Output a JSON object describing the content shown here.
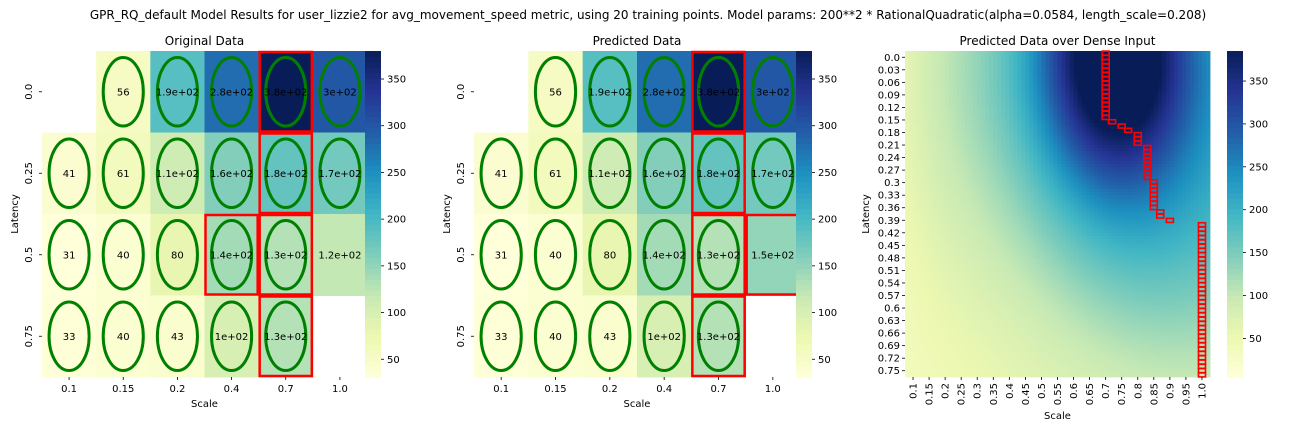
{
  "suptitle": "GPR_RQ_default Model Results for user_lizzie2 for avg_movement_speed metric, using 20 training points. Model params: 200**2 * RationalQuadratic(alpha=0.0584, length_scale=0.208)",
  "colormap": {
    "name": "YlGnBu",
    "stops": [
      "#ffffd9",
      "#edf8b1",
      "#c7e9b4",
      "#7fcdbb",
      "#41b6c4",
      "#1d91c0",
      "#225ea8",
      "#253494",
      "#081d58"
    ]
  },
  "ellipse_color": "#008000",
  "highlight_color": "#ff0000",
  "chart_data": [
    {
      "type": "heatmap",
      "title": "Original Data",
      "xlabel": "Scale",
      "ylabel": "Latency",
      "x_categories": [
        "0.1",
        "0.15",
        "0.2",
        "0.4",
        "0.7",
        "1.0"
      ],
      "y_categories": [
        "0.0",
        "0.25",
        "0.5",
        "0.75"
      ],
      "values": [
        [
          null,
          56,
          190,
          280,
          380,
          300
        ],
        [
          41,
          61,
          110,
          160,
          180,
          170
        ],
        [
          31,
          40,
          80,
          140,
          130,
          120
        ],
        [
          33,
          40,
          43,
          100,
          130,
          null
        ]
      ],
      "labels": [
        [
          "",
          "56",
          "1.9e+02",
          "2.8e+02",
          "3.8e+02",
          "3e+02"
        ],
        [
          "41",
          "61",
          "1.1e+02",
          "1.6e+02",
          "1.8e+02",
          "1.7e+02"
        ],
        [
          "31",
          "40",
          "80",
          "1.4e+02",
          "1.3e+02",
          "1.2e+02"
        ],
        [
          "33",
          "40",
          "43",
          "1e+02",
          "1.3e+02",
          ""
        ]
      ],
      "training_cells": [
        [
          0,
          1
        ],
        [
          0,
          2
        ],
        [
          0,
          3
        ],
        [
          0,
          4
        ],
        [
          0,
          5
        ],
        [
          1,
          0
        ],
        [
          1,
          1
        ],
        [
          1,
          2
        ],
        [
          1,
          3
        ],
        [
          1,
          4
        ],
        [
          1,
          5
        ],
        [
          2,
          0
        ],
        [
          2,
          1
        ],
        [
          2,
          2
        ],
        [
          2,
          3
        ],
        [
          2,
          4
        ],
        [
          3,
          0
        ],
        [
          3,
          1
        ],
        [
          3,
          2
        ],
        [
          3,
          3
        ],
        [
          3,
          4
        ]
      ],
      "highlight_cells": [
        [
          0,
          4
        ],
        [
          1,
          4
        ],
        [
          2,
          3
        ],
        [
          2,
          4
        ],
        [
          3,
          4
        ]
      ],
      "colorbar": {
        "vmin": 31,
        "vmax": 380,
        "ticks": [
          50,
          100,
          150,
          200,
          250,
          300,
          350
        ]
      }
    },
    {
      "type": "heatmap",
      "title": "Predicted Data",
      "xlabel": "Scale",
      "ylabel": "Latency",
      "x_categories": [
        "0.1",
        "0.15",
        "0.2",
        "0.4",
        "0.7",
        "1.0"
      ],
      "y_categories": [
        "0.0",
        "0.25",
        "0.5",
        "0.75"
      ],
      "values": [
        [
          null,
          56,
          190,
          280,
          380,
          300
        ],
        [
          41,
          61,
          110,
          160,
          180,
          170
        ],
        [
          31,
          40,
          80,
          140,
          130,
          150
        ],
        [
          33,
          40,
          43,
          100,
          130,
          null
        ]
      ],
      "labels": [
        [
          "",
          "56",
          "1.9e+02",
          "2.8e+02",
          "3.8e+02",
          "3e+02"
        ],
        [
          "41",
          "61",
          "1.1e+02",
          "1.6e+02",
          "1.8e+02",
          "1.7e+02"
        ],
        [
          "31",
          "40",
          "80",
          "1.4e+02",
          "1.3e+02",
          "1.5e+02"
        ],
        [
          "33",
          "40",
          "43",
          "1e+02",
          "1.3e+02",
          ""
        ]
      ],
      "training_cells": [
        [
          0,
          1
        ],
        [
          0,
          2
        ],
        [
          0,
          3
        ],
        [
          0,
          4
        ],
        [
          0,
          5
        ],
        [
          1,
          0
        ],
        [
          1,
          1
        ],
        [
          1,
          2
        ],
        [
          1,
          3
        ],
        [
          1,
          4
        ],
        [
          1,
          5
        ],
        [
          2,
          0
        ],
        [
          2,
          1
        ],
        [
          2,
          2
        ],
        [
          2,
          3
        ],
        [
          2,
          4
        ],
        [
          3,
          0
        ],
        [
          3,
          1
        ],
        [
          3,
          2
        ],
        [
          3,
          3
        ],
        [
          3,
          4
        ]
      ],
      "highlight_cells": [
        [
          0,
          4
        ],
        [
          1,
          4
        ],
        [
          2,
          4
        ],
        [
          2,
          5
        ],
        [
          3,
          4
        ]
      ],
      "colorbar": {
        "vmin": 31,
        "vmax": 380,
        "ticks": [
          50,
          100,
          150,
          200,
          250,
          300,
          350
        ]
      }
    },
    {
      "type": "heatmap",
      "title": "Predicted Data over Dense Input",
      "xlabel": "Scale",
      "ylabel": "Latency",
      "x_categories": [
        "0.1",
        "0.15",
        "0.2",
        "0.25",
        "0.3",
        "0.35",
        "0.4",
        "0.45",
        "0.5",
        "0.55",
        "0.6",
        "0.65",
        "0.7",
        "0.75",
        "0.8",
        "0.85",
        "0.9",
        "0.95",
        "1.0"
      ],
      "y_categories": [
        "0.0",
        "0.03",
        "0.06",
        "0.09",
        "0.12",
        "0.15",
        "0.18",
        "0.21",
        "0.24",
        "0.27",
        "0.3",
        "0.33",
        "0.36",
        "0.39",
        "0.42",
        "0.45",
        "0.48",
        "0.51",
        "0.54",
        "0.57",
        "0.6",
        "0.63",
        "0.66",
        "0.69",
        "0.72",
        "0.75"
      ],
      "boundary": [
        {
          "x": 0.7,
          "y_from": 0.0,
          "y_to": 0.15
        },
        {
          "x": 0.72,
          "y": 0.16
        },
        {
          "x": 0.75,
          "y": 0.17
        },
        {
          "x": 0.77,
          "y": 0.18
        },
        {
          "x": 0.8,
          "y_from": 0.19,
          "y_to": 0.21
        },
        {
          "x": 0.83,
          "y_from": 0.22,
          "y_to": 0.29
        },
        {
          "x": 0.85,
          "y_from": 0.3,
          "y_to": 0.36
        },
        {
          "x": 0.87,
          "y_from": 0.37,
          "y_to": 0.38
        },
        {
          "x": 0.9,
          "y": 0.39
        },
        {
          "x": 1.0,
          "y_from": 0.4,
          "y_to": 0.75
        }
      ],
      "colorbar": {
        "vmin": 5,
        "vmax": 385,
        "ticks": [
          50,
          100,
          150,
          200,
          250,
          300,
          350
        ]
      }
    }
  ]
}
